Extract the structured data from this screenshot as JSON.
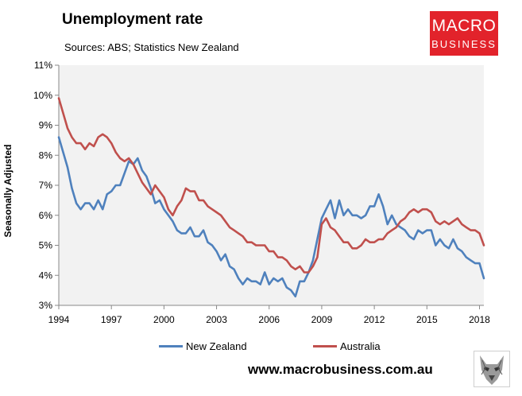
{
  "header": {
    "title": "Unemployment rate",
    "subtitle": "Sources: ABS; Statistics New Zealand"
  },
  "logo": {
    "line1": "MACRO",
    "line2": "BUSINESS",
    "color": "#e2232b"
  },
  "footer": {
    "url": "www.macrobusiness.com.au",
    "wolf_icon": "wolf-head-icon"
  },
  "colors": {
    "plot_background": "#f2f2f2",
    "new_zealand": "#4f81bd",
    "australia": "#c0504d"
  },
  "chart_data": {
    "type": "line",
    "title": "Unemployment rate",
    "subtitle": "Sources: ABS; Statistics New Zealand",
    "ylabel": "Seasonally Adjusted",
    "xlabel": "",
    "xlim": [
      1994,
      2018.25
    ],
    "ylim": [
      3,
      11
    ],
    "x_ticks": [
      1994,
      1997,
      2000,
      2003,
      2006,
      2009,
      2012,
      2015,
      2018
    ],
    "y_ticks": [
      3,
      4,
      5,
      6,
      7,
      8,
      9,
      10,
      11
    ],
    "y_tick_labels": [
      "3%",
      "4%",
      "5%",
      "6%",
      "7%",
      "8%",
      "9%",
      "10%",
      "11%"
    ],
    "grid": false,
    "legend": "bottom",
    "series": [
      {
        "name": "New Zealand",
        "color": "#4f81bd",
        "x_start": 1994,
        "step": 0.25,
        "values": [
          8.6,
          8.1,
          7.6,
          6.9,
          6.4,
          6.2,
          6.4,
          6.4,
          6.2,
          6.5,
          6.2,
          6.7,
          6.8,
          7.0,
          7.0,
          7.4,
          7.8,
          7.7,
          7.9,
          7.5,
          7.3,
          6.9,
          6.4,
          6.5,
          6.2,
          6.0,
          5.8,
          5.5,
          5.4,
          5.4,
          5.6,
          5.3,
          5.3,
          5.5,
          5.1,
          5.0,
          4.8,
          4.5,
          4.7,
          4.3,
          4.2,
          3.9,
          3.7,
          3.9,
          3.8,
          3.8,
          3.7,
          4.1,
          3.7,
          3.9,
          3.8,
          3.9,
          3.6,
          3.5,
          3.3,
          3.8,
          3.8,
          4.1,
          4.5,
          5.2,
          5.9,
          6.2,
          6.5,
          5.9,
          6.5,
          6.0,
          6.2,
          6.0,
          6.0,
          5.9,
          6.0,
          6.3,
          6.3,
          6.7,
          6.3,
          5.7,
          6.0,
          5.7,
          5.6,
          5.5,
          5.3,
          5.2,
          5.5,
          5.4,
          5.5,
          5.5,
          5.0,
          5.2,
          5.0,
          4.9,
          5.2,
          4.9,
          4.8,
          4.6,
          4.5,
          4.4,
          4.4,
          3.9
        ]
      },
      {
        "name": "Australia",
        "color": "#c0504d",
        "x_start": 1994,
        "step": 0.25,
        "values": [
          9.9,
          9.4,
          8.9,
          8.6,
          8.4,
          8.4,
          8.2,
          8.4,
          8.3,
          8.6,
          8.7,
          8.6,
          8.4,
          8.1,
          7.9,
          7.8,
          7.9,
          7.7,
          7.4,
          7.1,
          6.9,
          6.7,
          7.0,
          6.8,
          6.6,
          6.2,
          6.0,
          6.3,
          6.5,
          6.9,
          6.8,
          6.8,
          6.5,
          6.5,
          6.3,
          6.2,
          6.1,
          6.0,
          5.8,
          5.6,
          5.5,
          5.4,
          5.3,
          5.1,
          5.1,
          5.0,
          5.0,
          5.0,
          4.8,
          4.8,
          4.6,
          4.6,
          4.5,
          4.3,
          4.2,
          4.3,
          4.1,
          4.1,
          4.3,
          4.6,
          5.7,
          5.9,
          5.6,
          5.5,
          5.3,
          5.1,
          5.1,
          4.9,
          4.9,
          5.0,
          5.2,
          5.1,
          5.1,
          5.2,
          5.2,
          5.4,
          5.5,
          5.6,
          5.8,
          5.9,
          6.1,
          6.2,
          6.1,
          6.2,
          6.2,
          6.1,
          5.8,
          5.7,
          5.8,
          5.7,
          5.8,
          5.9,
          5.7,
          5.6,
          5.5,
          5.5,
          5.4,
          5.0
        ]
      }
    ]
  }
}
